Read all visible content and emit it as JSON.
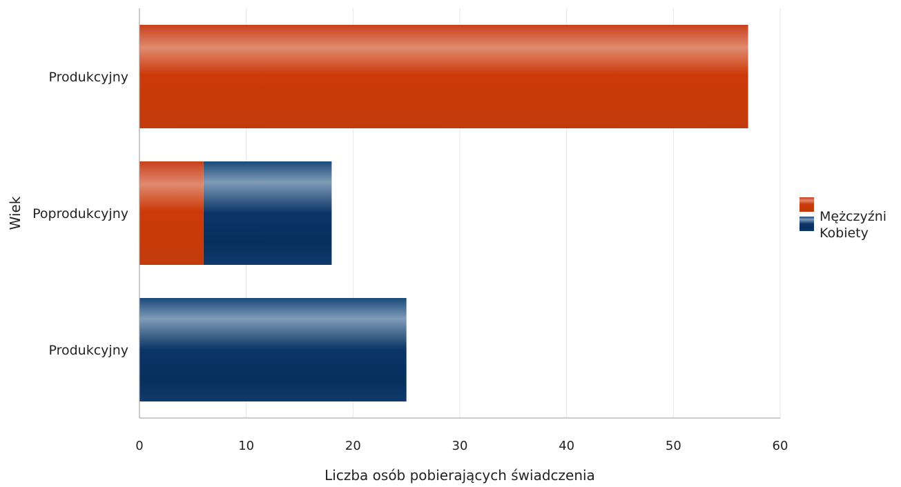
{
  "chart_data": {
    "type": "bar",
    "orientation": "horizontal",
    "stacked": true,
    "title": "",
    "xlabel": "Liczba osób pobierających świadczenia",
    "ylabel": "Wiek",
    "categories": [
      "Produkcyjny",
      "Poprodukcyjny",
      "Produkcyjny"
    ],
    "series": [
      {
        "name": "Mężczyźni",
        "values": [
          57,
          6,
          0
        ],
        "color": "#cc3a0a"
      },
      {
        "name": "Kobiety",
        "values": [
          0,
          12,
          25
        ],
        "color": "#0a3566"
      }
    ],
    "xlim": [
      0,
      60
    ],
    "xticks": [
      0,
      10,
      20,
      30,
      40,
      50,
      60
    ],
    "grid": true,
    "legend_position": "right"
  }
}
